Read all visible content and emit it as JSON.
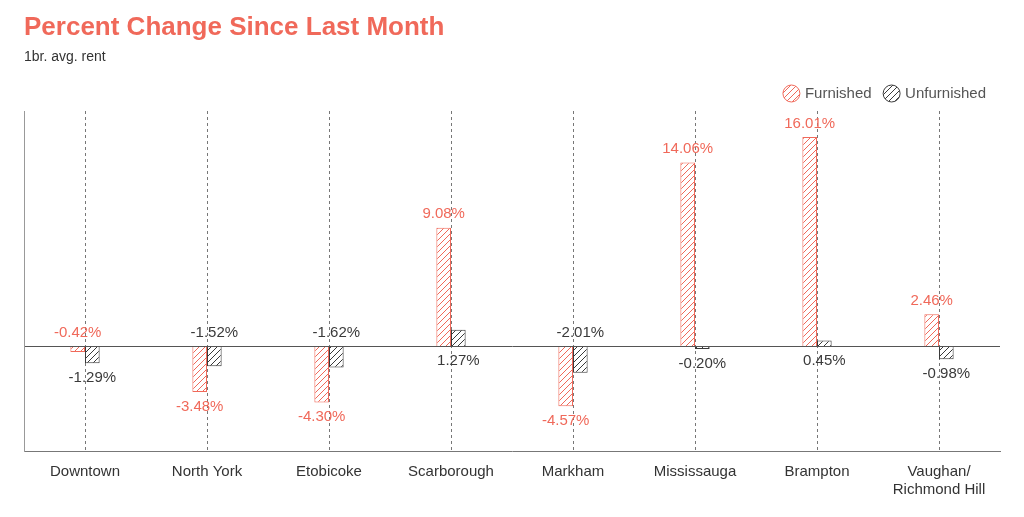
{
  "chart_data": {
    "type": "bar",
    "title": "Percent Change Since Last Month",
    "subtitle": "1br. avg. rent",
    "categories": [
      "Downtown",
      "North York",
      "Etobicoke",
      "Scarborough",
      "Markham",
      "Mississauga",
      "Brampton",
      "Vaughan/ Richmond Hill"
    ],
    "series": [
      {
        "name": "Furnished",
        "color": "#f0695a",
        "values": [
          -0.42,
          -3.48,
          -4.3,
          9.08,
          -4.57,
          14.06,
          16.01,
          2.46
        ],
        "value_labels": [
          "-0.42%",
          "-3.48%",
          "-4.30%",
          "9.08%",
          "-4.57%",
          "14.06%",
          "16.01%",
          "2.46%"
        ]
      },
      {
        "name": "Unfurnished",
        "color": "#3a3a3a",
        "values": [
          -1.29,
          -1.52,
          -1.62,
          1.27,
          -2.01,
          -0.2,
          0.45,
          -0.98
        ],
        "value_labels": [
          "-1.29%",
          "-1.52%",
          "-1.62%",
          "1.27%",
          "-2.01%",
          "-0.20%",
          "0.45%",
          "-0.98%"
        ]
      }
    ],
    "ylim": [
      -8,
      18
    ],
    "yticks": [
      0
    ],
    "grid": true,
    "legend": "top-right",
    "data_labels": true,
    "tick_labels": "x"
  }
}
